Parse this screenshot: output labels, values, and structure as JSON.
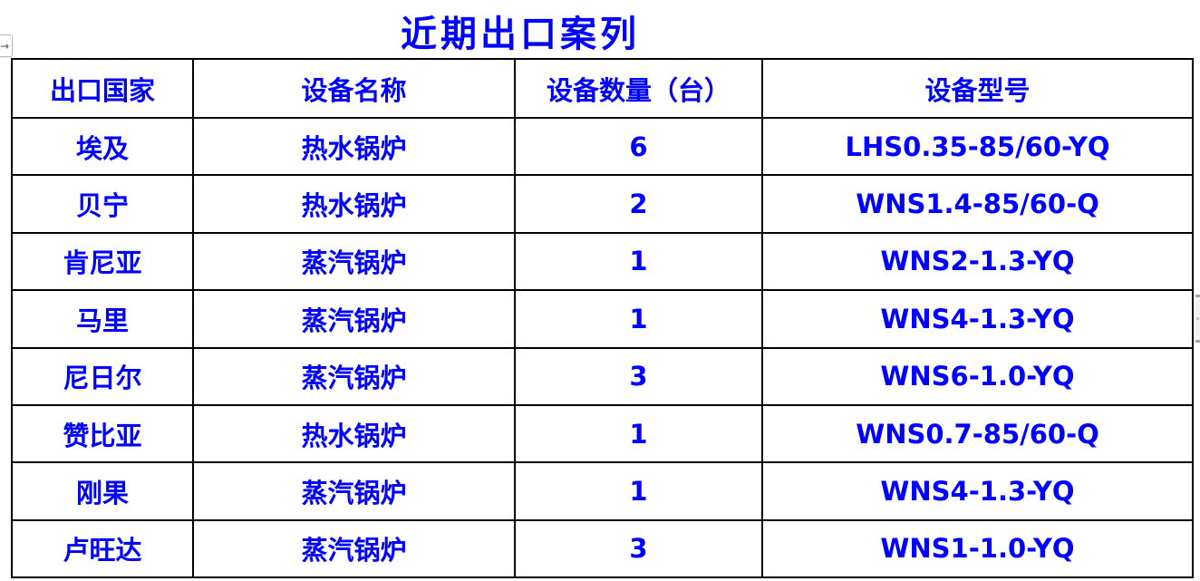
{
  "page": {
    "title": "近期出口案列"
  },
  "icons": {
    "right_arrow": "→"
  },
  "colors": {
    "text_blue": "#0000ff",
    "border_black": "#000000"
  },
  "table": {
    "columns": [
      "出口国家",
      "设备名称",
      "设备数量（台）",
      "设备型号"
    ],
    "rows": [
      [
        "埃及",
        "热水锅炉",
        "6",
        "LHS0.35-85/60-YQ"
      ],
      [
        "贝宁",
        "热水锅炉",
        "2",
        "WNS1.4-85/60-Q"
      ],
      [
        "肯尼亚",
        "蒸汽锅炉",
        "1",
        "WNS2-1.3-YQ"
      ],
      [
        "马里",
        "蒸汽锅炉",
        "1",
        "WNS4-1.3-YQ"
      ],
      [
        "尼日尔",
        "蒸汽锅炉",
        "3",
        "WNS6-1.0-YQ"
      ],
      [
        "赞比亚",
        "热水锅炉",
        "1",
        "WNS0.7-85/60-Q"
      ],
      [
        "刚果",
        "蒸汽锅炉",
        "1",
        "WNS4-1.3-YQ"
      ],
      [
        "卢旺达",
        "蒸汽锅炉",
        "3",
        "WNS1-1.0-YQ"
      ]
    ]
  }
}
